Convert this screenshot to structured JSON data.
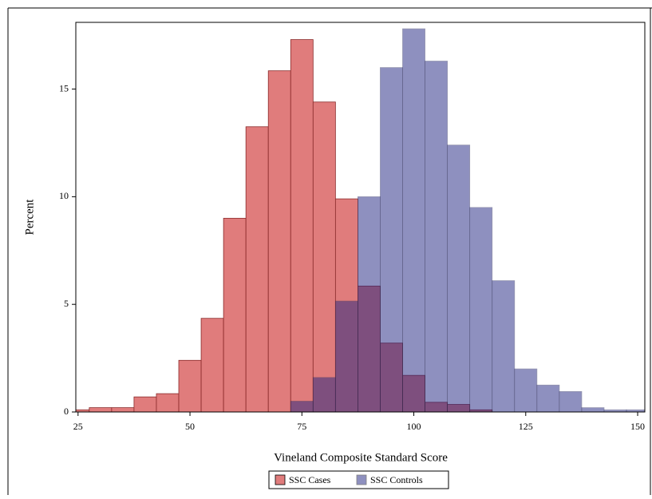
{
  "chart_data": {
    "type": "histogram",
    "xlabel": "Vineland Composite Standard Score",
    "ylabel": "Percent",
    "bins": [
      22.5,
      27.5,
      32.5,
      37.5,
      42.5,
      47.5,
      52.5,
      57.5,
      62.5,
      67.5,
      72.5,
      77.5,
      82.5,
      87.5,
      92.5,
      97.5,
      102.5,
      107.5,
      112.5,
      117.5,
      122.5,
      127.5,
      132.5,
      137.5,
      142.5,
      147.5,
      152.5
    ],
    "series": [
      {
        "name": "SSC Cases",
        "color": "#e07c7c",
        "values": [
          0.1,
          0.2,
          0.2,
          0.7,
          0.85,
          2.4,
          4.35,
          9.0,
          13.25,
          15.85,
          17.3,
          14.4,
          9.9,
          5.85,
          3.2,
          1.7,
          0.45,
          0.35,
          0.1,
          0,
          0,
          0,
          0,
          0,
          0,
          0
        ]
      },
      {
        "name": "SSC Controls",
        "color": "#1f2380",
        "values": [
          0,
          0,
          0,
          0,
          0,
          0,
          0,
          0,
          0,
          0,
          0.5,
          1.6,
          5.15,
          10.0,
          16.0,
          17.8,
          16.3,
          12.4,
          9.5,
          6.1,
          2.0,
          1.25,
          0.95,
          0.2,
          0.1,
          0.1
        ]
      }
    ],
    "xlim": [
      24.5,
      151.6
    ],
    "xticks": [
      25,
      50,
      75,
      100,
      125,
      150
    ],
    "ylim": [
      0,
      18.1
    ],
    "yticks": [
      0,
      5,
      10,
      15
    ]
  }
}
